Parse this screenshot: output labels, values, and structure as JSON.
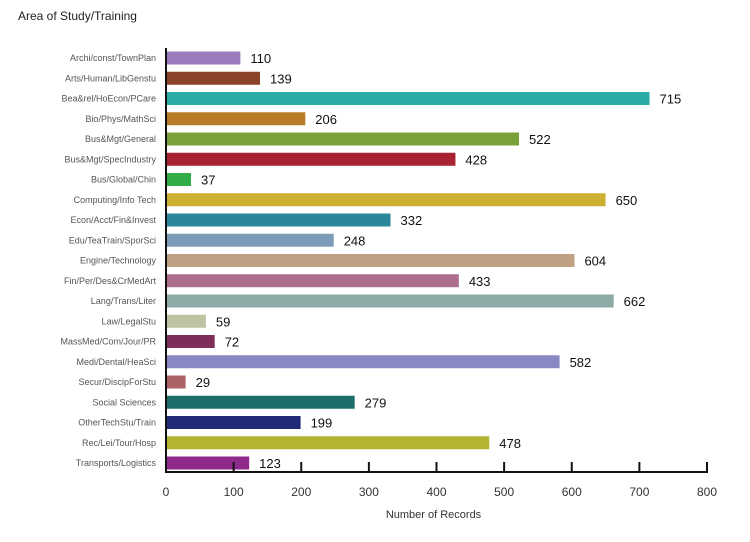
{
  "chart_data": {
    "type": "bar",
    "orientation": "horizontal",
    "title": "Area of Study/Training",
    "xlabel": "Number of Records",
    "ylabel": "",
    "xlim": [
      0,
      800
    ],
    "xticks": [
      0,
      100,
      200,
      300,
      400,
      500,
      600,
      700,
      800
    ],
    "grid": false,
    "legend": "none",
    "categories": [
      "Archi/const/TownPlan",
      "Arts/Human/LibGenstu",
      "Bea&rel/HoEcon/PCare",
      "Bio/Phys/MathSci",
      "Bus&Mgt/General",
      "Bus&Mgt/SpecIndustry",
      "Bus/Global/Chin",
      "Computing/Info Tech",
      "Econ/Acct/Fin&Invest",
      "Edu/TeaTrain/SporSci",
      "Engine/Technology",
      "Fin/Per/Des&CrMedArt",
      "Lang/Trans/Liter",
      "Law/LegalStu",
      "MassMed/Com/Jour/PR",
      "Medi/Dental/HeaSci",
      "Secur/DiscipForStu",
      "Social Sciences",
      "OtherTechStu/Train",
      "Rec/Lei/Tour/Hosp",
      "Transports/Logistics"
    ],
    "values": [
      110,
      139,
      715,
      206,
      522,
      428,
      37,
      650,
      332,
      248,
      604,
      433,
      662,
      59,
      72,
      582,
      29,
      279,
      199,
      478,
      123
    ],
    "colors": [
      "#9a7bbd",
      "#8b4428",
      "#2aa9a5",
      "#b87b28",
      "#7aa03a",
      "#a82231",
      "#33ad48",
      "#cdb032",
      "#2b859b",
      "#7c9bb8",
      "#bfa083",
      "#ad6e8e",
      "#8caaa6",
      "#bec3a2",
      "#7e2e58",
      "#8788c4",
      "#ad6266",
      "#1c6e6a",
      "#202a77",
      "#b5b432",
      "#8e2a8a"
    ]
  }
}
